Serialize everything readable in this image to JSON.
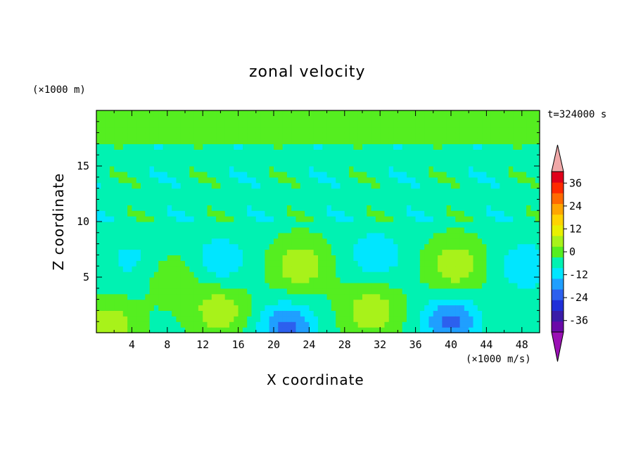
{
  "chart_data": {
    "type": "heatmap",
    "title": "zonal velocity",
    "xlabel": "X coordinate",
    "ylabel": "Z coordinate",
    "x_unit": "(×1000 m)",
    "y_unit": "(×1000 m)",
    "time_label": "t=324000 s",
    "colorbar_unit": "(×1000 m/s)",
    "xlim": [
      0,
      50
    ],
    "ylim": [
      0,
      20
    ],
    "x_ticks": [
      4,
      8,
      12,
      16,
      20,
      24,
      28,
      32,
      36,
      40,
      44,
      48
    ],
    "y_ticks": [
      5,
      10,
      15
    ],
    "colorbar": {
      "levels": [
        -42,
        -36,
        -30,
        -24,
        -18,
        -12,
        -6,
        0,
        6,
        12,
        18,
        24,
        30,
        36,
        42
      ],
      "tick_labels": [
        36,
        24,
        12,
        0,
        -12,
        -24,
        -36
      ],
      "colors": [
        "#6a0aa8",
        "#3a1ca8",
        "#1f2fd8",
        "#2c60ee",
        "#1f9fff",
        "#00e6ff",
        "#00f2b2",
        "#55ee20",
        "#a8f21a",
        "#e8f000",
        "#ffd400",
        "#ffa600",
        "#ff6a00",
        "#ff2a00",
        "#e0001a"
      ],
      "under_color": "#9a10b4",
      "over_color": "#f0a8a8"
    },
    "features": [
      {
        "x": 1.5,
        "z": 0.5,
        "value": 12
      },
      {
        "x": 4,
        "z": 6.5,
        "value": -6
      },
      {
        "x": 8.5,
        "z": 5,
        "value": 6
      },
      {
        "x": 14,
        "z": 2,
        "value": 12
      },
      {
        "x": 14,
        "z": 6.5,
        "value": -9
      },
      {
        "x": 21.5,
        "z": 0.4,
        "value": -18
      },
      {
        "x": 23,
        "z": 6,
        "value": 12
      },
      {
        "x": 31,
        "z": 2,
        "value": 12
      },
      {
        "x": 31.5,
        "z": 7,
        "value": -9
      },
      {
        "x": 40,
        "z": 1,
        "value": -18
      },
      {
        "x": 40.5,
        "z": 6,
        "value": 12
      },
      {
        "x": 48.5,
        "z": 6,
        "value": -9
      }
    ]
  }
}
